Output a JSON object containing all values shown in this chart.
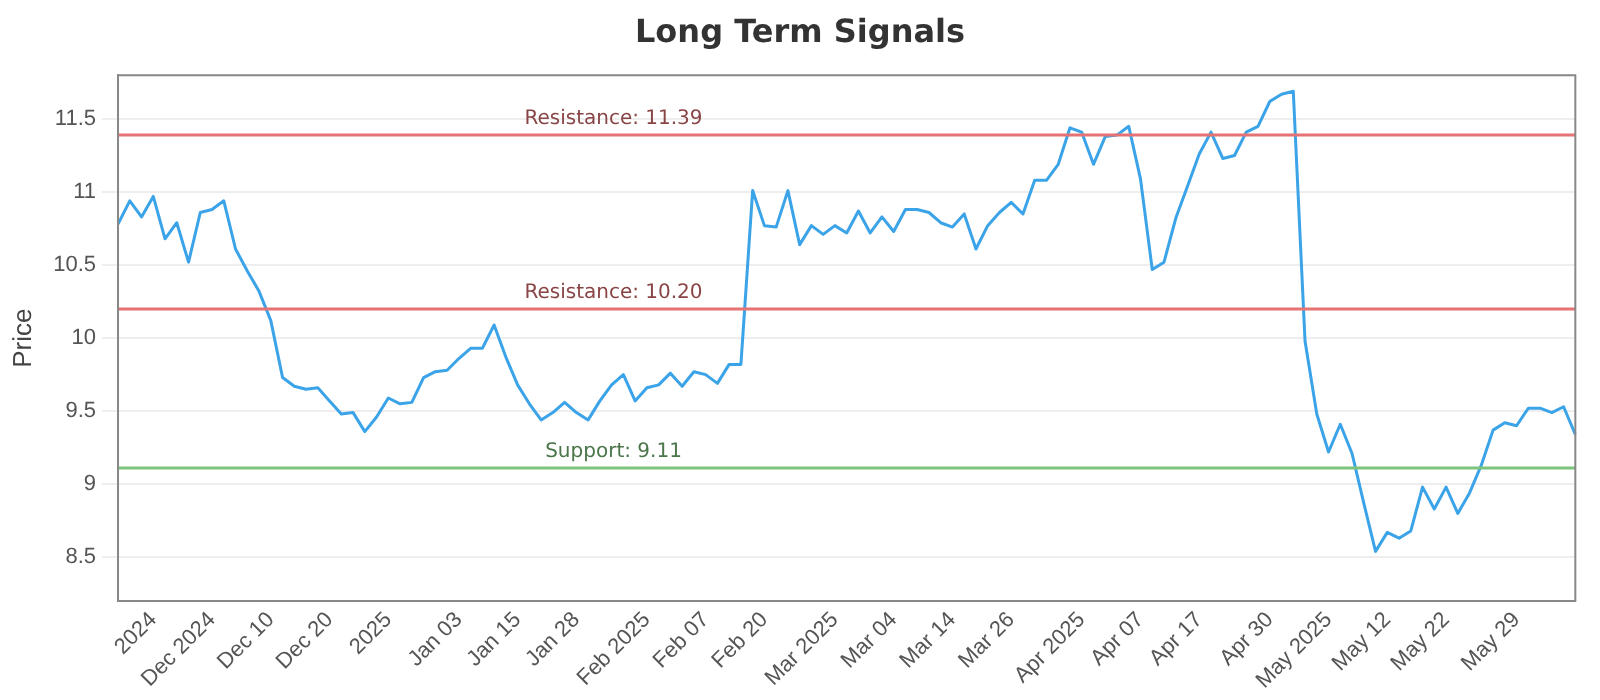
{
  "chart_data": {
    "type": "line",
    "title": "Long Term Signals",
    "ylabel": "Price",
    "categories": [
      null,
      null,
      null,
      "2024",
      null,
      null,
      null,
      null,
      "Dec 2024",
      null,
      null,
      null,
      null,
      "Dec 10",
      null,
      null,
      null,
      null,
      "Dec 20",
      null,
      null,
      null,
      null,
      "2025",
      null,
      null,
      null,
      null,
      null,
      "Jan 03",
      null,
      null,
      null,
      null,
      "Jan 15",
      null,
      null,
      null,
      null,
      "Jan 28",
      null,
      null,
      null,
      null,
      null,
      "Feb 2025",
      null,
      null,
      null,
      null,
      "Feb 07",
      null,
      null,
      null,
      null,
      "Feb 20",
      null,
      null,
      null,
      null,
      null,
      "Mar 2025",
      null,
      null,
      null,
      null,
      "Mar 04",
      null,
      null,
      null,
      null,
      "Mar 14",
      null,
      null,
      null,
      null,
      "Mar 26",
      null,
      null,
      null,
      null,
      null,
      "Apr 2025",
      null,
      null,
      null,
      null,
      "Apr 07",
      null,
      null,
      null,
      null,
      "Apr 17",
      null,
      null,
      null,
      null,
      null,
      "Apr 30",
      null,
      null,
      null,
      null,
      "May 2025",
      null,
      null,
      null,
      null,
      "May 12",
      null,
      null,
      null,
      null,
      "May 22",
      null,
      null,
      null,
      null,
      null,
      "May 29",
      null,
      null,
      null,
      null,
      null
    ],
    "series": [
      {
        "color": "#3ba3e8",
        "values": [
          10.78,
          10.94,
          10.83,
          10.97,
          10.68,
          10.79,
          10.52,
          10.86,
          10.88,
          10.94,
          10.61,
          10.46,
          10.32,
          10.12,
          9.73,
          9.67,
          9.65,
          9.66,
          9.57,
          9.48,
          9.49,
          9.36,
          9.46,
          9.59,
          9.55,
          9.56,
          9.73,
          9.77,
          9.78,
          9.86,
          9.93,
          9.93,
          10.09,
          9.87,
          9.68,
          9.55,
          9.44,
          9.49,
          9.56,
          9.49,
          9.44,
          9.57,
          9.68,
          9.75,
          9.57,
          9.66,
          9.68,
          9.76,
          9.67,
          9.77,
          9.75,
          9.69,
          9.82,
          9.82,
          11.01,
          10.77,
          10.76,
          11.01,
          10.64,
          10.77,
          10.71,
          10.77,
          10.72,
          10.87,
          10.72,
          10.83,
          10.73,
          10.88,
          10.88,
          10.86,
          10.79,
          10.76,
          10.85,
          10.61,
          10.77,
          10.86,
          10.93,
          10.85,
          11.08,
          11.08,
          11.19,
          11.44,
          11.41,
          11.19,
          11.38,
          11.39,
          11.45,
          11.09,
          10.47,
          10.52,
          10.82,
          11.04,
          11.26,
          11.41,
          11.23,
          11.25,
          11.41,
          11.45,
          11.62,
          11.67,
          11.69,
          9.98,
          9.48,
          9.22,
          9.41,
          9.21,
          8.87,
          8.54,
          8.67,
          8.63,
          8.68,
          8.98,
          8.83,
          8.98,
          8.8,
          8.94,
          9.13,
          9.37,
          9.42,
          9.4,
          9.52,
          9.52,
          9.49,
          9.53,
          9.34
        ]
      }
    ],
    "ylim": [
      8.2,
      11.8
    ],
    "yticks": [
      8.5,
      9,
      9.5,
      10,
      10.5,
      11,
      11.5
    ],
    "grid": "y",
    "legend": false,
    "marker": "none",
    "line_style": "solid",
    "ref_lines": [
      {
        "axis": "y",
        "value": 11.39,
        "label": "Resistance: 11.39",
        "color": "#e57373"
      },
      {
        "axis": "y",
        "value": 10.2,
        "label": "Resistance: 10.20",
        "color": "#e57373"
      },
      {
        "axis": "y",
        "value": 9.11,
        "label": "Support: 9.11",
        "color": "#7cc47c"
      }
    ]
  }
}
